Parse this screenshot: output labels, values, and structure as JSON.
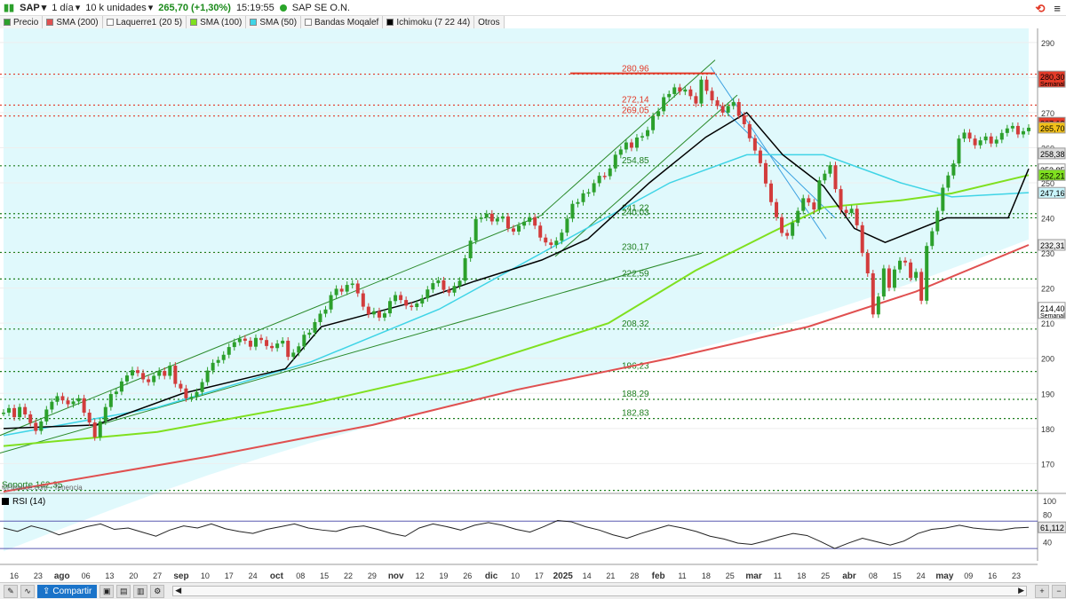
{
  "header": {
    "symbol": "SAP",
    "interval": "1 día",
    "units": "10 k unidades",
    "price_text": "265,70 (+1,30%)",
    "time": "15:19:55",
    "name": "SAP SE O.N.",
    "logo_text": "⟲"
  },
  "legend": [
    {
      "label": "Precio",
      "color": "#2ca02c"
    },
    {
      "label": "SMA (200)",
      "color": "#e05050"
    },
    {
      "label": "Laquerre1 (20 5)",
      "color": "#ffffff"
    },
    {
      "label": "SMA (100)",
      "color": "#7fe01f"
    },
    {
      "label": "SMA (50)",
      "color": "#3fd4e6"
    },
    {
      "label": "Bandas Moqalef",
      "color": "#ffffff"
    },
    {
      "label": "Ichimoku (7 22 44)",
      "color": "#000000"
    },
    {
      "label": "Otros",
      "color": ""
    }
  ],
  "bottom": {
    "share_label": "Compartir"
  },
  "chart_data": {
    "type": "candlestick",
    "watermark": "©Finance.com - Tenencia",
    "ylim": [
      162,
      294
    ],
    "y_ticks": [
      170,
      180,
      190,
      200,
      210,
      220,
      230,
      240,
      250,
      260,
      270,
      280,
      290
    ],
    "x_ticks": [
      "16",
      "23",
      "ago",
      "06",
      "13",
      "20",
      "27",
      "sep",
      "10",
      "17",
      "24",
      "oct",
      "08",
      "15",
      "22",
      "29",
      "nov",
      "12",
      "19",
      "26",
      "dic",
      "10",
      "17",
      "2025",
      "14",
      "21",
      "28",
      "feb",
      "11",
      "18",
      "25",
      "mar",
      "11",
      "18",
      "25",
      "abr",
      "08",
      "15",
      "24",
      "may",
      "09",
      "16",
      "23"
    ],
    "price_labels": [
      {
        "value": 280.3,
        "text": "280,30",
        "sub": "Semanal",
        "color": "#e23a28"
      },
      {
        "value": 267.13,
        "text": "267,13",
        "color": "#e23a28"
      },
      {
        "value": 265.7,
        "text": "265,70",
        "color": "#f2c019"
      },
      {
        "value": 258.38,
        "text": "258,38",
        "color": "#dddddd"
      },
      {
        "value": 253.85,
        "text": "253,85",
        "color": "#ffffff"
      },
      {
        "value": 252.21,
        "text": "252,21",
        "color": "#7fe01f"
      },
      {
        "value": 247.16,
        "text": "247,16",
        "color": "#c8f4fa"
      },
      {
        "value": 232.31,
        "text": "232,31",
        "color": "#eeeeee"
      },
      {
        "value": 214.4,
        "text": "214,40",
        "sub": "Semanal",
        "color": "#ffffff"
      }
    ],
    "levels": [
      {
        "value": 280.96,
        "label": "280,96",
        "color": "#e23a28",
        "style": "dotted"
      },
      {
        "value": 272.14,
        "label": "272,14",
        "color": "#e23a28",
        "style": "dotted"
      },
      {
        "value": 269.05,
        "label": "269,05",
        "color": "#e23a28",
        "style": "dotted"
      },
      {
        "value": 254.85,
        "label": "254,85",
        "color": "#1e7e1e",
        "style": "dotted"
      },
      {
        "value": 241.22,
        "label": "241,22",
        "color": "#1e7e1e",
        "style": "dotted"
      },
      {
        "value": 240.03,
        "label": "240,03",
        "color": "#1e7e1e",
        "style": "dotted"
      },
      {
        "value": 230.17,
        "label": "230,17",
        "color": "#1e7e1e",
        "style": "dotted"
      },
      {
        "value": 222.59,
        "label": "222,59",
        "color": "#1e7e1e",
        "style": "dotted"
      },
      {
        "value": 208.32,
        "label": "208,32",
        "color": "#1e7e1e",
        "style": "dotted"
      },
      {
        "value": 196.23,
        "label": "196,23",
        "color": "#1e7e1e",
        "style": "dotted"
      },
      {
        "value": 188.29,
        "label": "188,29",
        "color": "#1e7e1e",
        "style": "dotted"
      },
      {
        "value": 182.83,
        "label": "182,83",
        "color": "#1e7e1e",
        "style": "dotted"
      },
      {
        "value": 162.35,
        "label": "Soporte 162,35",
        "color": "#1e7e1e",
        "style": "dotted"
      }
    ],
    "closes": [
      184.5,
      185.8,
      183.2,
      186.1,
      184.0,
      181.6,
      179.3,
      182.0,
      185.4,
      187.6,
      189.2,
      188.0,
      186.9,
      187.7,
      188.6,
      184.5,
      181.7,
      177.5,
      182.0,
      186.1,
      189.8,
      190.5,
      193.4,
      195.1,
      196.6,
      195.8,
      194.0,
      193.2,
      195.0,
      196.4,
      195.0,
      197.9,
      192.7,
      191.4,
      188.6,
      189.0,
      190.4,
      193.2,
      196.5,
      198.7,
      199.5,
      201.0,
      203.2,
      204.6,
      205.6,
      205.0,
      203.3,
      205.8,
      205.2,
      203.5,
      202.9,
      204.2,
      205.0,
      200.4,
      201.6,
      203.4,
      206.7,
      207.3,
      210.3,
      212.7,
      213.9,
      218.0,
      219.8,
      219.0,
      220.9,
      221.3,
      218.5,
      214.7,
      212.5,
      213.4,
      211.6,
      212.8,
      216.3,
      218.0,
      216.6,
      215.0,
      214.6,
      215.6,
      217.1,
      219.6,
      221.4,
      222.2,
      219.5,
      218.7,
      220.6,
      222.1,
      228.5,
      233.5,
      239.7,
      240.1,
      241.2,
      239.0,
      239.8,
      240.4,
      237.0,
      236.1,
      237.8,
      238.9,
      240.2,
      237.8,
      234.4,
      233.0,
      232.3,
      233.5,
      235.8,
      239.8,
      244.0,
      244.5,
      247.0,
      247.3,
      249.9,
      252.0,
      251.9,
      254.1,
      258.0,
      259.5,
      261.5,
      260.0,
      262.9,
      263.3,
      265.0,
      269.0,
      270.4,
      274.4,
      275.3,
      277.2,
      276.0,
      276.6,
      274.7,
      272.6,
      279.4,
      276.2,
      273.5,
      271.9,
      270.0,
      271.9,
      273.0,
      269.2,
      266.7,
      262.7,
      259.2,
      255.6,
      249.8,
      244.5,
      240.2,
      235.7,
      234.9,
      238.6,
      242.0,
      245.6,
      244.4,
      242.4,
      250.7,
      252.6,
      255.0,
      248.2,
      242.3,
      241.4,
      242.6,
      237.9,
      230.0,
      224.2,
      212.5,
      217.6,
      225.6,
      220.1,
      225.3,
      227.8,
      227.3,
      222.9,
      224.6,
      216.4,
      232.0,
      236.2,
      242.0,
      248.6,
      252.1,
      255.5,
      262.6,
      264.3,
      262.6,
      260.7,
      262.1,
      263.2,
      261.2,
      262.3,
      264.2,
      265.5,
      266.2,
      263.8,
      264.7,
      265.7
    ],
    "sma200": [
      {
        "x": 0,
        "y": 162
      },
      {
        "x": 40,
        "y": 172
      },
      {
        "x": 72,
        "y": 181
      },
      {
        "x": 100,
        "y": 191
      },
      {
        "x": 130,
        "y": 200
      },
      {
        "x": 157,
        "y": 209
      },
      {
        "x": 178,
        "y": 219
      },
      {
        "x": 200,
        "y": 232.3
      }
    ],
    "sma100": [
      {
        "x": 0,
        "y": 175
      },
      {
        "x": 30,
        "y": 179
      },
      {
        "x": 60,
        "y": 187
      },
      {
        "x": 90,
        "y": 197
      },
      {
        "x": 118,
        "y": 210
      },
      {
        "x": 135,
        "y": 225
      },
      {
        "x": 150,
        "y": 236
      },
      {
        "x": 160,
        "y": 243
      },
      {
        "x": 175,
        "y": 245
      },
      {
        "x": 185,
        "y": 247
      },
      {
        "x": 200,
        "y": 252.2
      }
    ],
    "sma50": [
      {
        "x": 0,
        "y": 178
      },
      {
        "x": 30,
        "y": 186
      },
      {
        "x": 60,
        "y": 199
      },
      {
        "x": 85,
        "y": 214
      },
      {
        "x": 110,
        "y": 234
      },
      {
        "x": 130,
        "y": 250
      },
      {
        "x": 145,
        "y": 258
      },
      {
        "x": 160,
        "y": 258
      },
      {
        "x": 175,
        "y": 250
      },
      {
        "x": 185,
        "y": 246
      },
      {
        "x": 200,
        "y": 247.2
      }
    ],
    "ichimoku": [
      {
        "x": 0,
        "y": 180
      },
      {
        "x": 18,
        "y": 181
      },
      {
        "x": 35,
        "y": 190
      },
      {
        "x": 55,
        "y": 197
      },
      {
        "x": 62,
        "y": 209
      },
      {
        "x": 80,
        "y": 216
      },
      {
        "x": 92,
        "y": 222
      },
      {
        "x": 105,
        "y": 228
      },
      {
        "x": 114,
        "y": 234
      },
      {
        "x": 126,
        "y": 250
      },
      {
        "x": 137,
        "y": 263
      },
      {
        "x": 145,
        "y": 270
      },
      {
        "x": 152,
        "y": 258
      },
      {
        "x": 160,
        "y": 249
      },
      {
        "x": 166,
        "y": 237
      },
      {
        "x": 172,
        "y": 233
      },
      {
        "x": 184,
        "y": 240
      },
      {
        "x": 196,
        "y": 240
      },
      {
        "x": 200,
        "y": 254
      }
    ],
    "rsi": {
      "label": "RSI (14)",
      "value_text": "61,112",
      "ylim": [
        12,
        108
      ],
      "ticks": [
        40,
        60,
        80,
        100
      ],
      "values": [
        60,
        55,
        63,
        58,
        50,
        56,
        62,
        66,
        58,
        60,
        54,
        48,
        57,
        63,
        60,
        66,
        59,
        55,
        52,
        58,
        62,
        66,
        60,
        57,
        55,
        61,
        63,
        58,
        52,
        48,
        60,
        66,
        62,
        57,
        64,
        68,
        64,
        58,
        54,
        62,
        71,
        69,
        62,
        57,
        50,
        45,
        52,
        58,
        64,
        60,
        55,
        48,
        44,
        38,
        36,
        41,
        47,
        52,
        49,
        40,
        30,
        38,
        45,
        40,
        35,
        41,
        52,
        58,
        60,
        64,
        60,
        58,
        57,
        60,
        61
      ]
    }
  }
}
